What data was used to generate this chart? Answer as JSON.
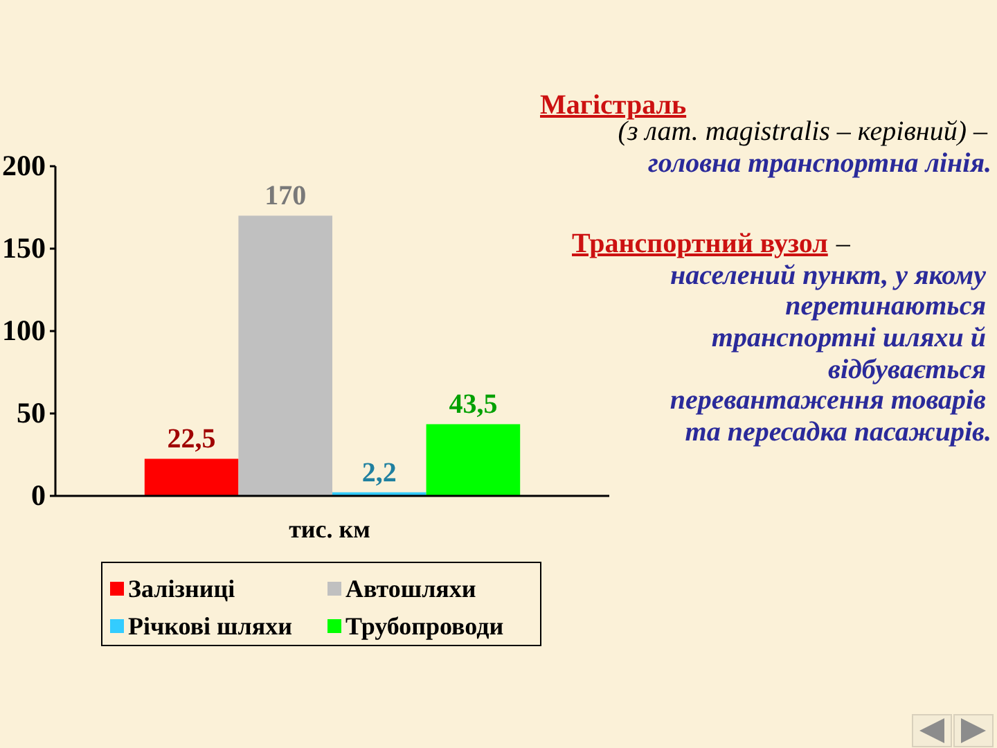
{
  "chart_data": {
    "type": "bar",
    "categories": [
      null
    ],
    "series": [
      {
        "name": "Залізниці",
        "color": "#ff0000",
        "values": [
          22.5
        ],
        "value_labels": [
          "22,5"
        ]
      },
      {
        "name": "Автошляхи",
        "color": "#c0c0c0",
        "values": [
          170
        ],
        "value_labels": [
          "170"
        ]
      },
      {
        "name": "Річкові шляхи",
        "color": "#33ccff",
        "values": [
          2.2
        ],
        "value_labels": [
          "2,2"
        ]
      },
      {
        "name": "Трубопроводи",
        "color": "#00ff00",
        "values": [
          43.5
        ],
        "value_labels": [
          "43,5"
        ]
      }
    ],
    "xlabel": "тис. км",
    "ylim": [
      0,
      200
    ],
    "yticks": [
      0,
      50,
      100,
      150,
      200
    ],
    "legend": "bottom",
    "annotations": [
      "Магістраль",
      "(з лат. magistralis – керівний) –",
      "головна транспортна лінія.",
      "Транспортний вузол",
      "–",
      "населений пункт, у якому",
      "перетинаються",
      "транспортні шляхи й",
      "відбувається",
      "перевантаження товарів",
      "та пересадка пасажирів."
    ]
  }
}
